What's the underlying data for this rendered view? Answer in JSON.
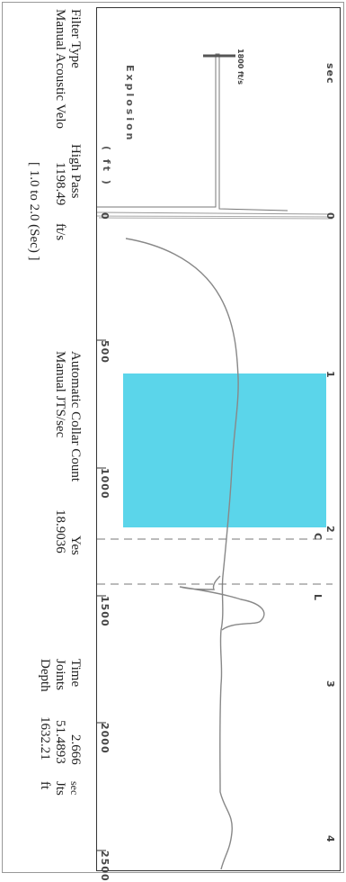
{
  "header": {
    "filter_type_label": "Filter Type",
    "filter_type_value": "High Pass",
    "manual_acoustic_label": "Manual Acoustic Velo",
    "manual_acoustic_value": "1198.49",
    "manual_acoustic_unit": "ft/s",
    "range_text": "[ 1.0 to 2.0 (Sec) ]",
    "auto_collar_label": "Automatic Collar Count",
    "auto_collar_value": "Yes",
    "manual_jts_label": "Manual JTS/sec",
    "manual_jts_value": "18.9036"
  },
  "readout": {
    "time_label": "Time",
    "time_value": "2.666",
    "time_unit": "sec",
    "joints_label": "Joints",
    "joints_value": "51.4893",
    "joints_unit": "Jts",
    "depth_label": "Depth",
    "depth_value": "1632.21",
    "depth_unit": "ft"
  },
  "plot": {
    "explosion_label": "Explosion",
    "ft_label": "( ft )",
    "sec_label": "sec",
    "scale_label": "1800 ft/s",
    "time_ticks": [
      "0",
      "1",
      "2",
      "3",
      "4"
    ],
    "depth_ticks": [
      "0",
      "500",
      "1000",
      "1500",
      "2000",
      "2500"
    ],
    "marker_c": "C",
    "marker_l": "L",
    "selection_color": "#5bd5ea",
    "selection_start_sec": 1.0,
    "selection_end_sec": 2.0,
    "trace_color": "#888888"
  }
}
